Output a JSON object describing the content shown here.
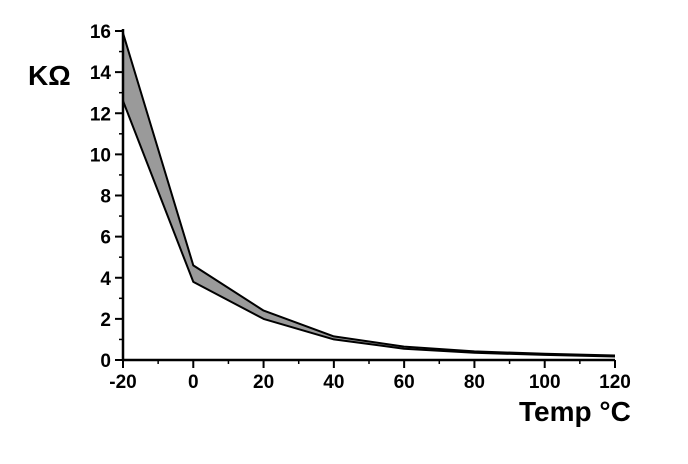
{
  "chart_data": {
    "type": "area",
    "title": "",
    "xlabel": "Temp °C",
    "ylabel": "KΩ",
    "xlim": [
      -20,
      120
    ],
    "ylim": [
      0,
      16
    ],
    "x_ticks": [
      -20,
      0,
      20,
      40,
      60,
      80,
      100,
      120
    ],
    "x_tick_labels": [
      "-20",
      "0",
      "20",
      "40",
      "60",
      "80",
      "100",
      "120"
    ],
    "y_ticks": [
      0,
      2,
      4,
      6,
      8,
      10,
      12,
      14,
      16
    ],
    "y_tick_labels": [
      "0",
      "2",
      "4",
      "6",
      "8",
      "10",
      "12",
      "14",
      "16"
    ],
    "grid": false,
    "legend": "none",
    "x": [
      -20,
      0,
      20,
      40,
      60,
      80,
      100,
      120
    ],
    "series": [
      {
        "values": [
          15.9,
          4.6,
          2.4,
          1.15,
          0.65,
          0.42,
          0.3,
          0.22
        ]
      },
      {
        "values": [
          12.6,
          3.8,
          2.0,
          1.0,
          0.55,
          0.35,
          0.25,
          0.17
        ]
      }
    ],
    "band_fill": "#9a9a9a",
    "line_color": "#000000"
  }
}
